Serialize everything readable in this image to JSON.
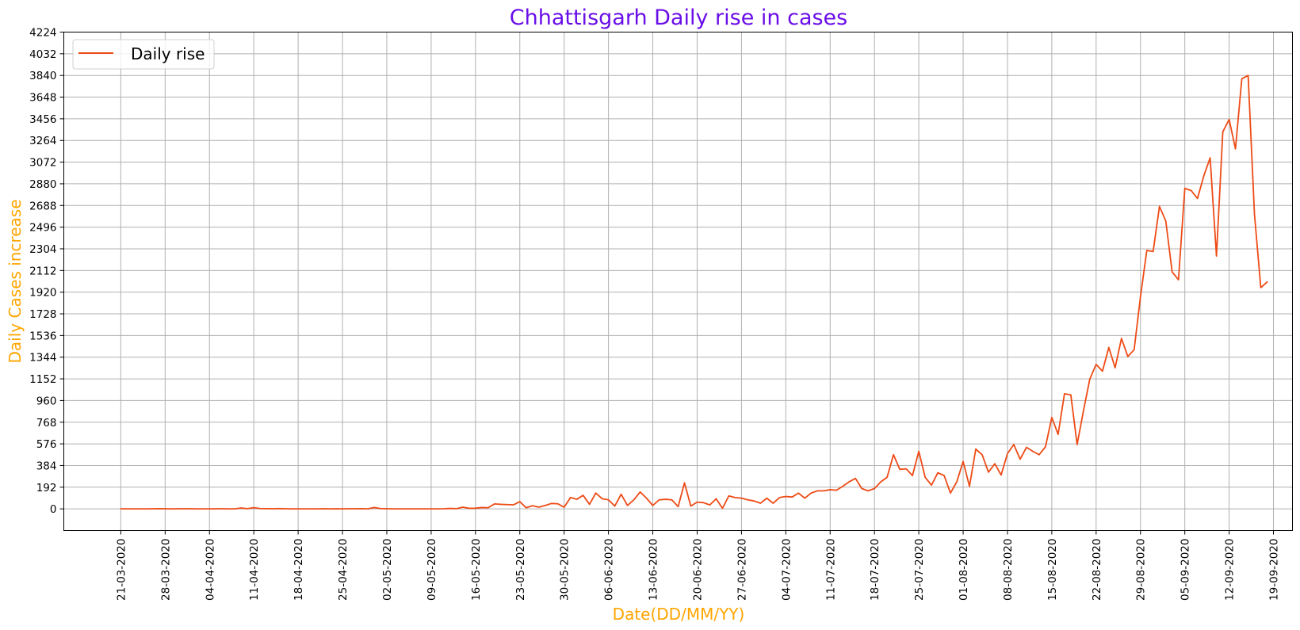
{
  "chart_data": {
    "type": "line",
    "title": "Chhattisgarh Daily rise in cases",
    "xlabel": "Date(DD/MM/YY)",
    "ylabel": "Daily Cases increase",
    "x_start": "21-03-2020",
    "x_tick_labels": [
      "21-03-2020",
      "28-03-2020",
      "04-04-2020",
      "11-04-2020",
      "18-04-2020",
      "25-04-2020",
      "02-05-2020",
      "09-05-2020",
      "16-05-2020",
      "23-05-2020",
      "30-05-2020",
      "06-06-2020",
      "13-06-2020",
      "20-06-2020",
      "27-06-2020",
      "04-07-2020",
      "11-07-2020",
      "18-07-2020",
      "25-07-2020",
      "01-08-2020",
      "08-08-2020",
      "15-08-2020",
      "22-08-2020",
      "29-08-2020",
      "05-09-2020",
      "12-09-2020",
      "19-09-2020"
    ],
    "y_ticks": [
      0,
      192,
      384,
      576,
      768,
      960,
      1152,
      1344,
      1536,
      1728,
      1920,
      2112,
      2304,
      2496,
      2688,
      2880,
      3072,
      3264,
      3456,
      3648,
      3840,
      4032,
      4224
    ],
    "ylim": [
      -192,
      4224
    ],
    "xlim": [
      -9,
      185
    ],
    "grid": true,
    "legend_position": "upper-left",
    "colors": {
      "title": "#6a0ee8",
      "axis_label": "#ffa500",
      "line": "#ee4b16",
      "grid": "#b0b0b0"
    },
    "series": [
      {
        "name": "Daily rise",
        "values": [
          1,
          0,
          0,
          0,
          0,
          1,
          2,
          1,
          0,
          1,
          1,
          1,
          0,
          0,
          0,
          1,
          1,
          0,
          0,
          8,
          2,
          11,
          3,
          2,
          1,
          3,
          1,
          0,
          0,
          0,
          0,
          0,
          1,
          0,
          1,
          0,
          1,
          1,
          2,
          0,
          12,
          3,
          1,
          0,
          0,
          0,
          0,
          0,
          0,
          0,
          0,
          1,
          4,
          2,
          15,
          5,
          6,
          12,
          10,
          44,
          40,
          38,
          36,
          64,
          10,
          28,
          15,
          30,
          48,
          45,
          15,
          100,
          85,
          120,
          40,
          140,
          90,
          80,
          25,
          130,
          30,
          80,
          150,
          95,
          30,
          80,
          85,
          80,
          20,
          230,
          25,
          60,
          55,
          35,
          90,
          5,
          115,
          100,
          95,
          80,
          70,
          50,
          95,
          50,
          100,
          110,
          105,
          140,
          95,
          140,
          160,
          160,
          170,
          165,
          200,
          240,
          270,
          180,
          160,
          180,
          240,
          280,
          480,
          350,
          355,
          295,
          510,
          280,
          210,
          320,
          295,
          140,
          240,
          420,
          200,
          530,
          480,
          325,
          400,
          300,
          490,
          570,
          440,
          545,
          510,
          480,
          550,
          810,
          660,
          1020,
          1010,
          570,
          870,
          1150,
          1280,
          1220,
          1430,
          1250,
          1510,
          1350,
          1410,
          1880,
          2290,
          2280,
          2680,
          2550,
          2100,
          2030,
          2840,
          2820,
          2750,
          2950,
          3110,
          2240,
          3340,
          3450,
          3190,
          3810,
          3840,
          2610,
          1960,
          2010
        ]
      }
    ]
  }
}
